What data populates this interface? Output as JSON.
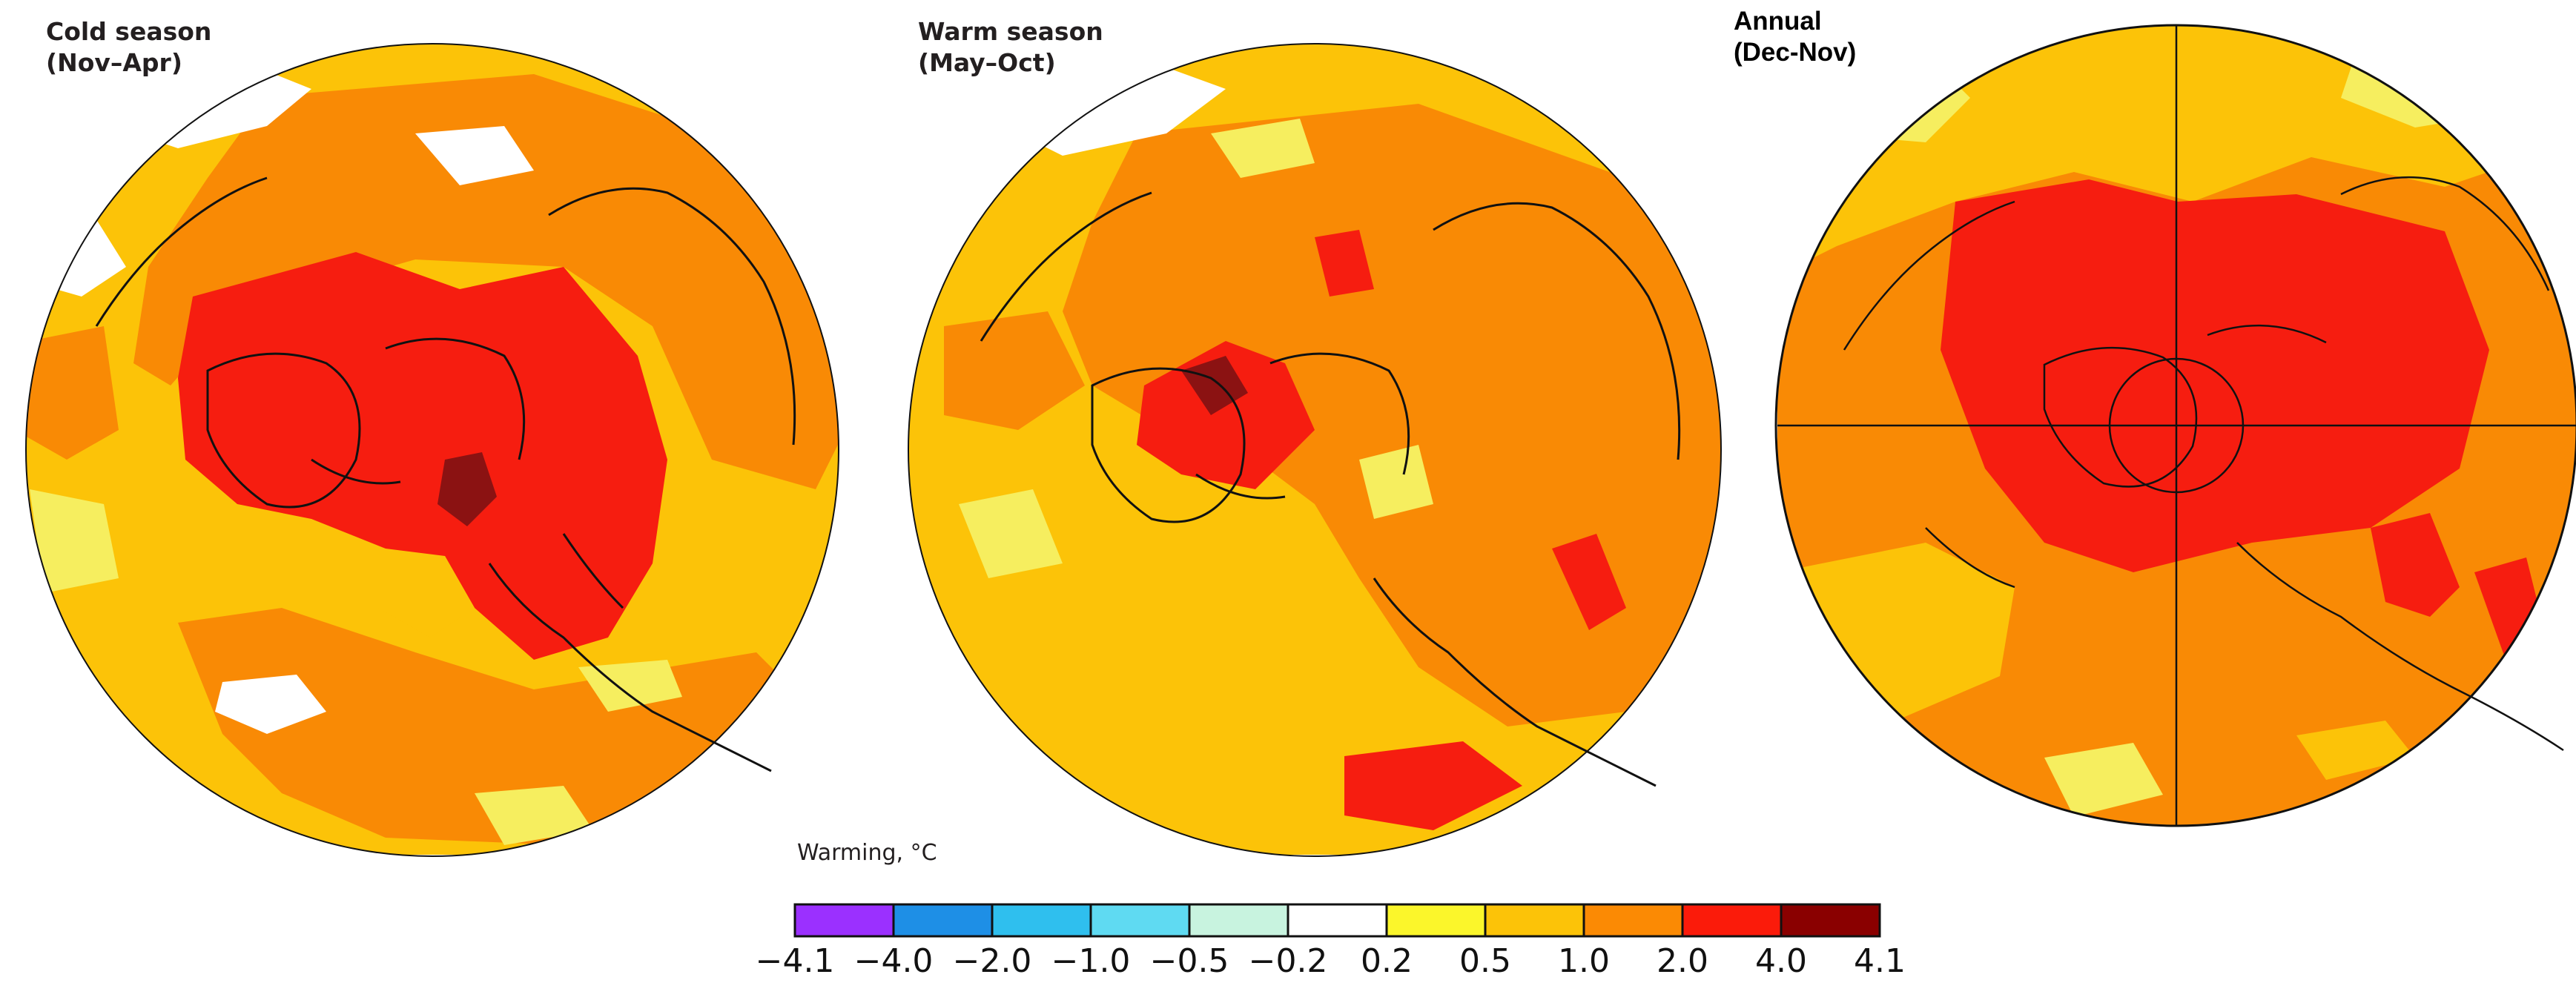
{
  "panels": [
    {
      "title": "Cold season",
      "subtitle": "(Nov–Apr)"
    },
    {
      "title": "Warm season",
      "subtitle": "(May–Oct)"
    },
    {
      "title": "Annual",
      "subtitle": "(Dec-Nov)"
    }
  ],
  "legend": {
    "title": "Warming, °C",
    "ticks": [
      "−4.1",
      "−4.0",
      "−2.0",
      "−1.0",
      "−0.5",
      "−0.2",
      "0.2",
      "0.5",
      "1.0",
      "2.0",
      "4.0",
      "4.1"
    ],
    "colors": [
      "#9b30ff",
      "#1e8fe6",
      "#2fbfee",
      "#5fdaf2",
      "#c8f3df",
      "#ffffff",
      "#fbf62b",
      "#fcc308",
      "#fb8a04",
      "#fb1b0a",
      "#8a0000"
    ]
  },
  "palette": {
    "white": "#ffffff",
    "yellow": "#f6ee5f",
    "gold": "#fcc308",
    "orange": "#f98a05",
    "red": "#f61d10",
    "darkred": "#8b1212",
    "border": "#111111"
  }
}
